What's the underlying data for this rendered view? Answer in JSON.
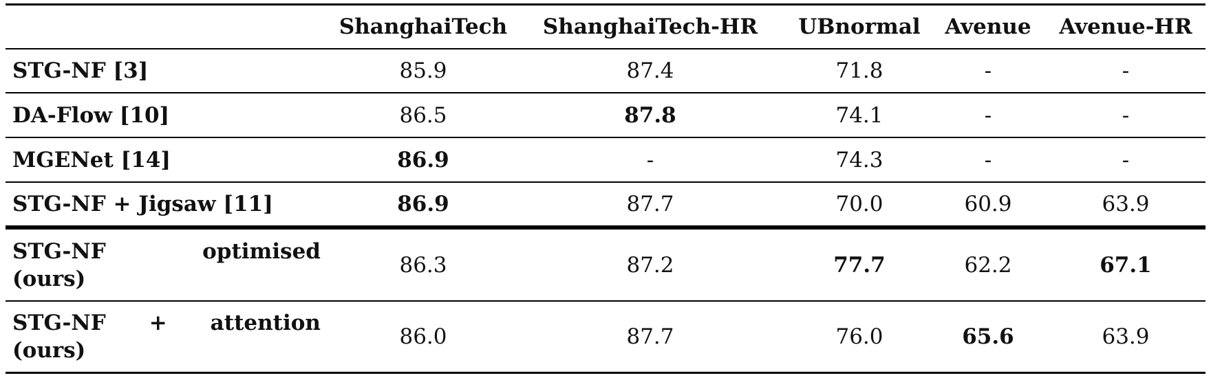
{
  "table": {
    "columns": [
      "ShanghaiTech",
      "ShanghaiTech-HR",
      "UBnormal",
      "Avenue",
      "Avenue-HR"
    ],
    "rows": [
      {
        "label_parts": [
          "STG-NF [3]"
        ],
        "values": [
          "85.9",
          "87.4",
          "71.8",
          "-",
          "-"
        ],
        "bold": [
          false,
          false,
          false,
          false,
          false
        ]
      },
      {
        "label_parts": [
          "DA-Flow [10]"
        ],
        "values": [
          "86.5",
          "87.8",
          "74.1",
          "-",
          "-"
        ],
        "bold": [
          false,
          true,
          false,
          false,
          false
        ]
      },
      {
        "label_parts": [
          "MGENet [14]"
        ],
        "values": [
          "86.9",
          "-",
          "74.3",
          "-",
          "-"
        ],
        "bold": [
          true,
          false,
          false,
          false,
          false
        ]
      },
      {
        "label_parts": [
          "STG-NF + Jigsaw [11]"
        ],
        "values": [
          "86.9",
          "87.7",
          "70.0",
          "60.9",
          "63.9"
        ],
        "bold": [
          true,
          false,
          false,
          false,
          false
        ]
      },
      {
        "label_parts": [
          "STG-NF",
          "optimised",
          "(ours)"
        ],
        "values": [
          "86.3",
          "87.2",
          "77.7",
          "62.2",
          "67.1"
        ],
        "bold": [
          false,
          false,
          true,
          false,
          true
        ]
      },
      {
        "label_parts": [
          "STG-NF",
          "+",
          "attention",
          "(ours)"
        ],
        "values": [
          "86.0",
          "87.7",
          "76.0",
          "65.6",
          "63.9"
        ],
        "bold": [
          false,
          false,
          false,
          true,
          false
        ]
      }
    ]
  }
}
